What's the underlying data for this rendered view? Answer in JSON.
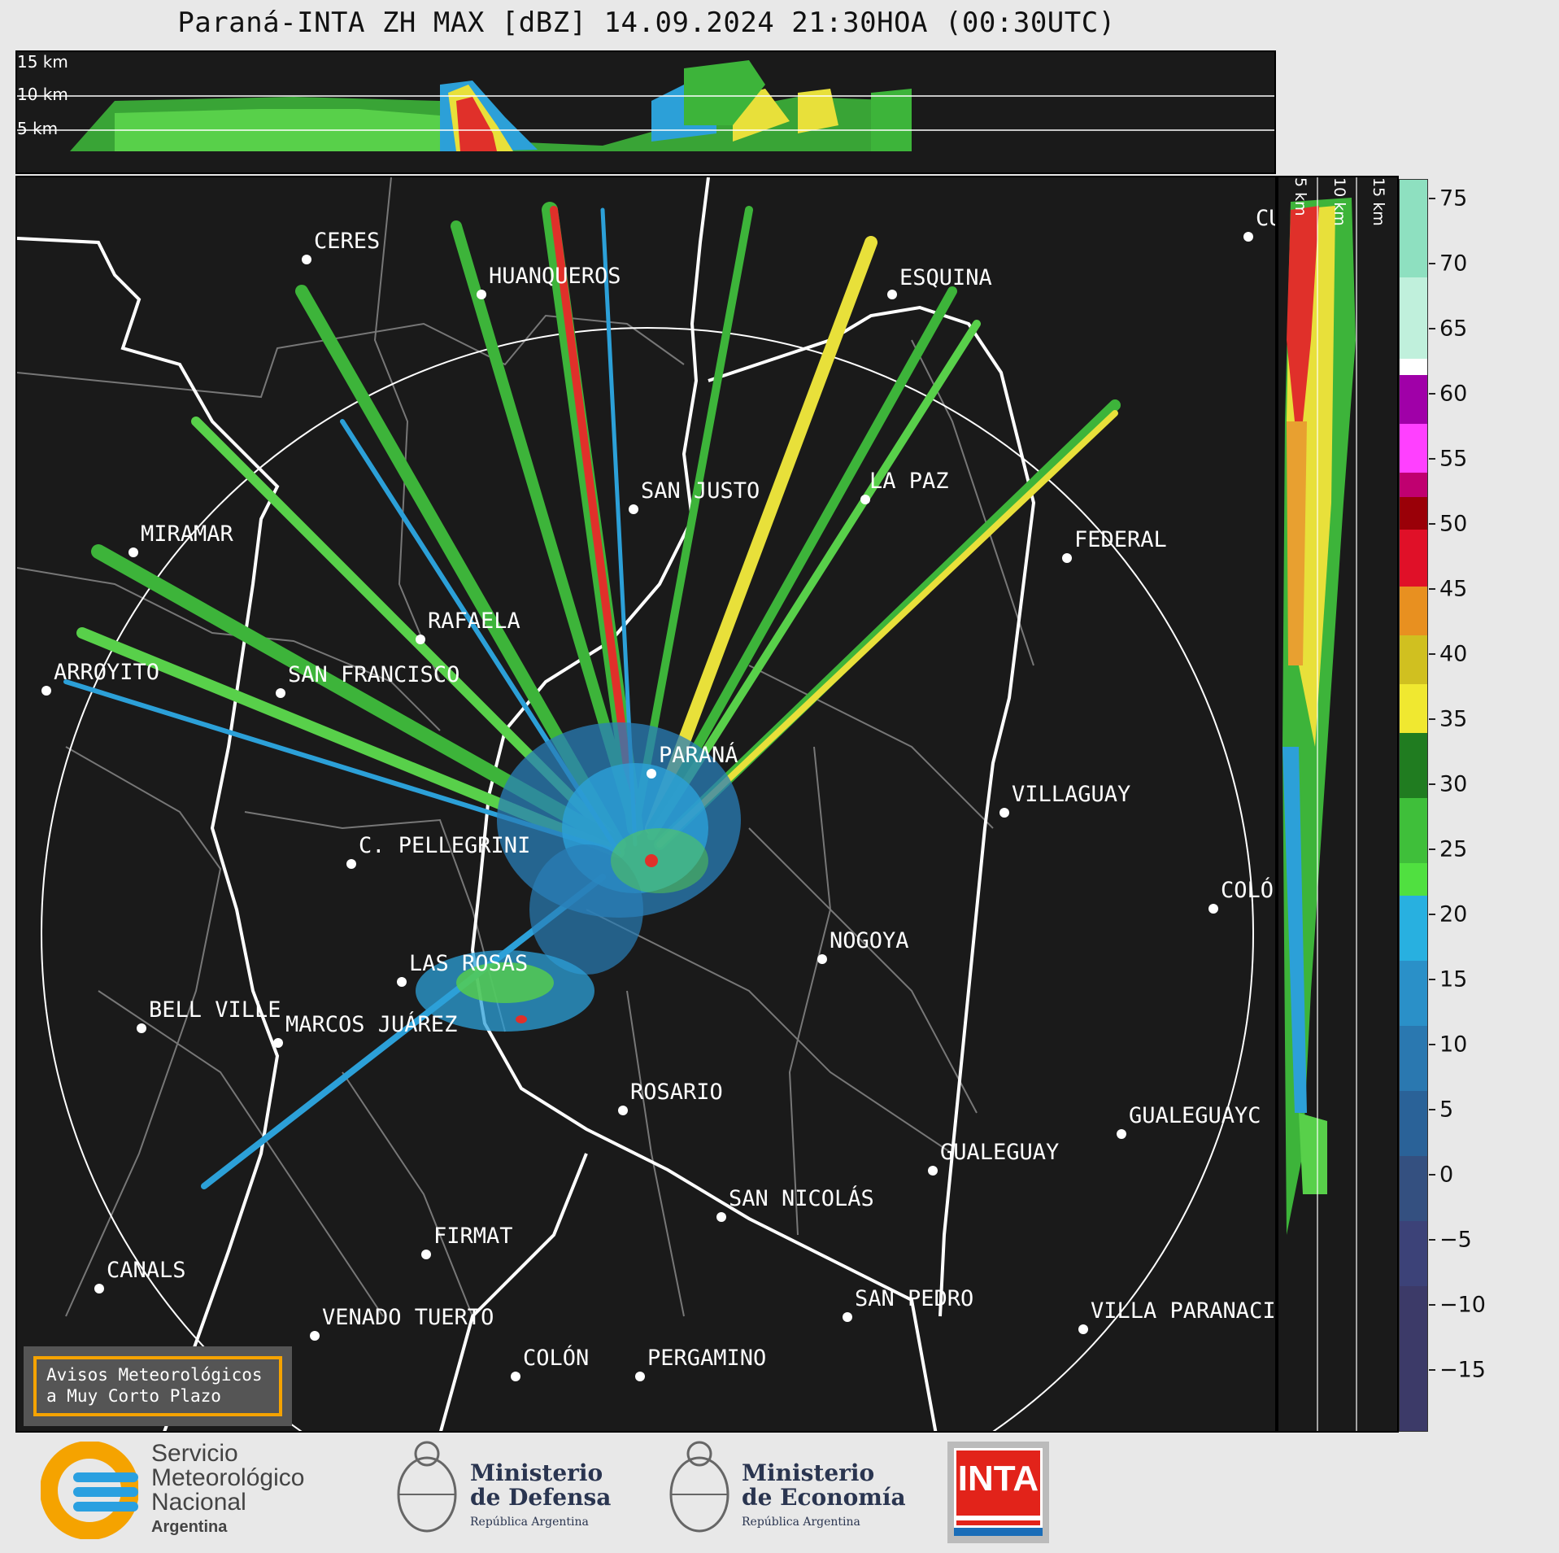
{
  "title": "Paraná-INTA ZH MAX [dBZ] 14.09.2024 21:30HOA (00:30UTC)",
  "top_panel_labels": [
    "15 km",
    "10 km",
    "5 km"
  ],
  "right_panel_labels": [
    "5 km",
    "10 km",
    "15 km"
  ],
  "colorbar": {
    "ticks": [
      "75",
      "70",
      "65",
      "60",
      "55",
      "50",
      "45",
      "40",
      "35",
      "30",
      "25",
      "20",
      "15",
      "10",
      "5",
      "0",
      "−5",
      "−10",
      "−15"
    ]
  },
  "cities": [
    {
      "name": "CERES"
    },
    {
      "name": "HUANQUEROS"
    },
    {
      "name": "ESQUINA"
    },
    {
      "name": "SAN JUSTO"
    },
    {
      "name": "LA PAZ"
    },
    {
      "name": "MIRAMAR"
    },
    {
      "name": "FEDERAL"
    },
    {
      "name": "RAFAELA"
    },
    {
      "name": "ARROYITO"
    },
    {
      "name": "SAN FRANCISCO"
    },
    {
      "name": "PARANÁ"
    },
    {
      "name": "VILLAGUAY"
    },
    {
      "name": "C. PELLEGRINI"
    },
    {
      "name": "COLÓ"
    },
    {
      "name": "NOGOYA"
    },
    {
      "name": "LAS ROSAS"
    },
    {
      "name": "BELL VILLE"
    },
    {
      "name": "MARCOS JUÁREZ"
    },
    {
      "name": "ROSARIO"
    },
    {
      "name": "GUALEGUAYC"
    },
    {
      "name": "GUALEGUAY"
    },
    {
      "name": "SAN NICOLÁS"
    },
    {
      "name": "FIRMAT"
    },
    {
      "name": "CANALS"
    },
    {
      "name": "SAN PEDRO"
    },
    {
      "name": "VILLA PARANACIT"
    },
    {
      "name": "VENADO TUERTO"
    },
    {
      "name": "COLÓN"
    },
    {
      "name": "PERGAMINO"
    },
    {
      "name": "CU"
    }
  ],
  "notice": {
    "line1": "Avisos Meteorológicos",
    "line2": "a Muy Corto Plazo"
  },
  "footer": {
    "smn": {
      "line1": "Servicio",
      "line2": "Meteorológico",
      "line3": "Nacional",
      "line4": "Argentina"
    },
    "defensa": {
      "line1": "Ministerio",
      "line2": "de Defensa",
      "line3": "República Argentina"
    },
    "economia": {
      "line1": "Ministerio",
      "line2": "de Economía",
      "line3": "República Argentina"
    },
    "inta": {
      "text": "INTA"
    }
  }
}
